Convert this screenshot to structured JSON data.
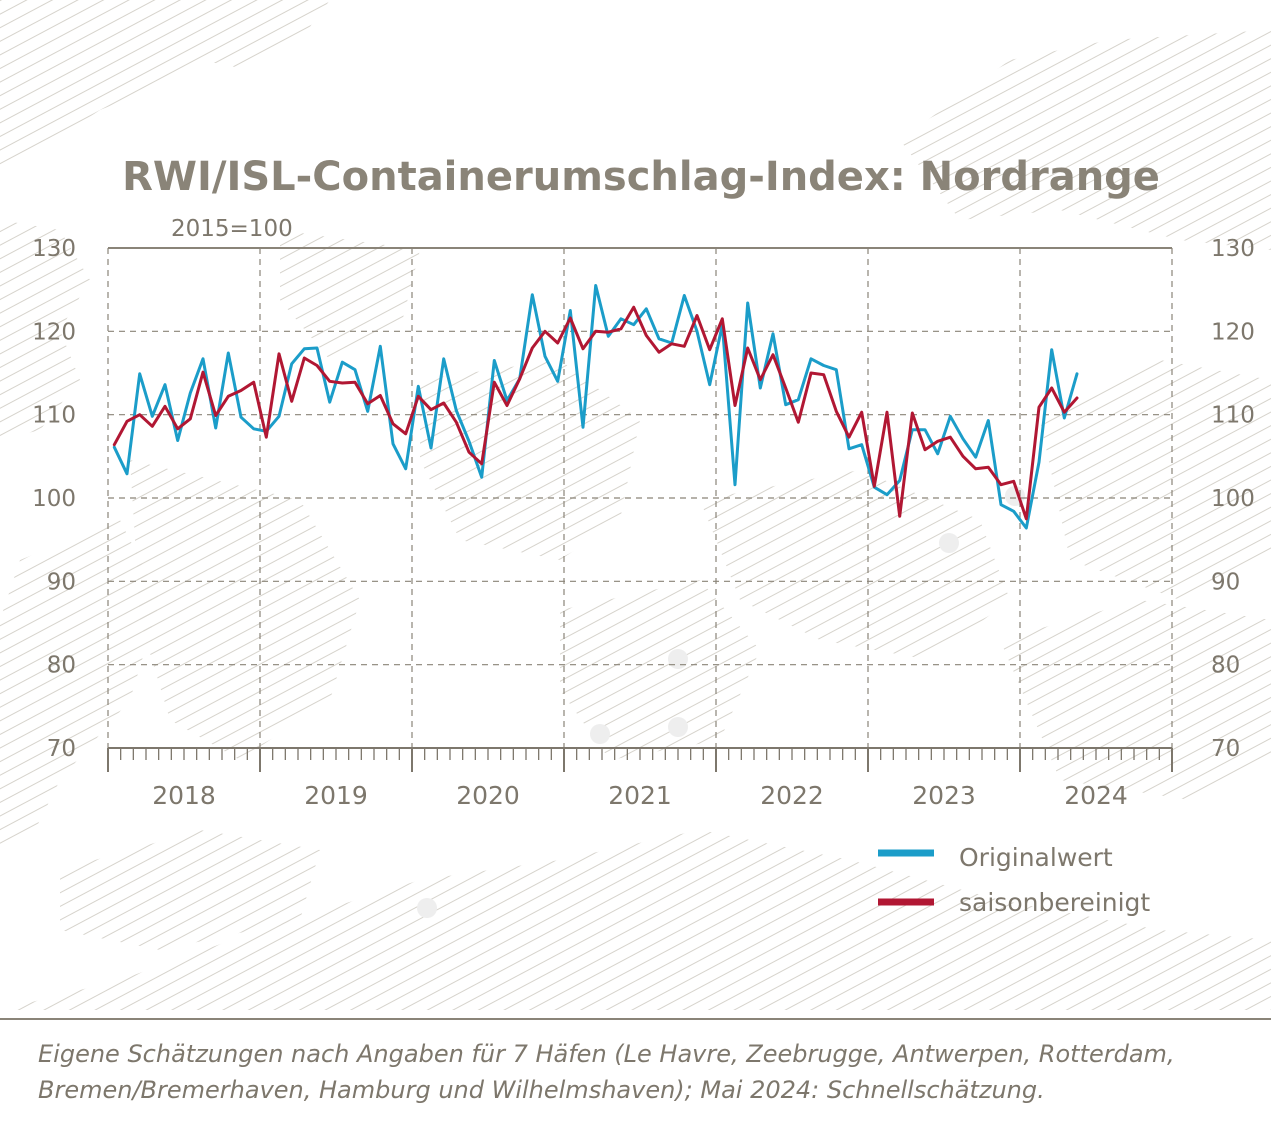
{
  "chart_data": {
    "type": "line",
    "title": "RWI/ISL-Containerumschlag-Index: Nordrange",
    "subtitle": "2015=100",
    "ylim": [
      70,
      130
    ],
    "yticks": [
      70,
      80,
      90,
      100,
      110,
      120,
      130
    ],
    "years": [
      "2018",
      "2019",
      "2020",
      "2021",
      "2022",
      "2023",
      "2024"
    ],
    "x_start": "2018-01",
    "x_end": "2024-12",
    "grid": "dashed vertical at year boundaries, dashed horizontal at 80-120",
    "legend_position": "bottom-right",
    "series": [
      {
        "name": "Originalwert",
        "color": "#1b9dc9",
        "values": [
          106.1,
          102.9,
          114.9,
          109.8,
          113.6,
          106.9,
          112.6,
          116.7,
          108.4,
          117.4,
          109.7,
          108.3,
          108.0,
          109.8,
          116.1,
          117.9,
          118.0,
          111.5,
          116.3,
          115.4,
          110.4,
          118.2,
          106.5,
          103.5,
          113.4,
          106.0,
          116.7,
          110.5,
          106.8,
          102.5,
          116.5,
          111.7,
          114.3,
          124.4,
          117.0,
          114.0,
          122.5,
          108.5,
          125.5,
          119.4,
          121.5,
          120.8,
          122.7,
          119.1,
          118.6,
          124.3,
          120.0,
          113.6,
          120.8,
          101.6,
          123.4,
          113.2,
          119.7,
          111.2,
          111.8,
          116.7,
          115.9,
          115.4,
          105.9,
          106.4,
          101.3,
          100.4,
          102.1,
          108.2,
          108.2,
          105.3,
          109.8,
          107.1,
          104.9,
          109.3,
          99.2,
          98.4,
          96.4,
          104.3,
          117.8,
          109.6,
          114.9
        ]
      },
      {
        "name": "saisonbereinigt",
        "color": "#b11733",
        "values": [
          106.4,
          109.2,
          110.0,
          108.6,
          111.0,
          108.3,
          109.5,
          115.1,
          109.9,
          112.2,
          112.9,
          113.9,
          107.3,
          117.3,
          111.6,
          116.8,
          115.9,
          114.0,
          113.8,
          113.9,
          111.3,
          112.3,
          108.9,
          107.7,
          112.2,
          110.6,
          111.4,
          109.1,
          105.5,
          104.1,
          113.9,
          111.1,
          114.3,
          118.0,
          120.0,
          118.6,
          121.6,
          117.9,
          120.0,
          119.9,
          120.3,
          122.9,
          119.5,
          117.5,
          118.5,
          118.2,
          121.9,
          117.8,
          121.5,
          111.1,
          118.0,
          114.2,
          117.2,
          113.2,
          109.1,
          115.0,
          114.8,
          110.4,
          107.3,
          110.3,
          101.4,
          110.3,
          97.8,
          110.2,
          105.8,
          106.8,
          107.3,
          105.0,
          103.5,
          103.7,
          101.6,
          102.0,
          97.5,
          110.9,
          113.2,
          110.3,
          112.0
        ]
      }
    ]
  },
  "footnote": {
    "line1": "Eigene Schätzungen nach Angaben für 7 Häfen (Le Havre, Zeebrugge, Antwerpen, Rotterdam,",
    "line2": "Bremen/Bremerhaven, Hamburg und Wilhelmshaven); Mai 2024: Schnellschätzung."
  },
  "colors": {
    "text": "#7d776c",
    "title": "#8a8478",
    "axis": "#7d776c",
    "grid": "#8a8478",
    "hatch": "#d6d3cc",
    "background": "#ffffff"
  }
}
